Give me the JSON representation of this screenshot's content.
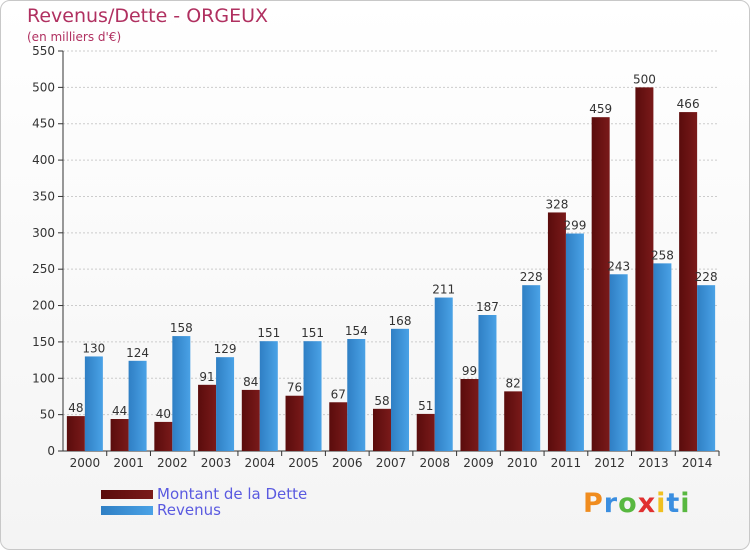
{
  "header": {
    "title": "Revenus/Dette - ORGEUX",
    "subtitle": "(en milliers d'€)"
  },
  "colors": {
    "dette": "#7a1a1a",
    "dette_dark": "#5a0c0c",
    "revenus": "#4aa2e6",
    "revenus_dark": "#2f7fc4",
    "grid": "#cccccc",
    "axis": "#333333"
  },
  "chart_data": {
    "type": "bar",
    "categories": [
      "2000",
      "2001",
      "2002",
      "2003",
      "2004",
      "2005",
      "2006",
      "2007",
      "2008",
      "2009",
      "2010",
      "2011",
      "2012",
      "2013",
      "2014"
    ],
    "series": [
      {
        "name": "Montant de la Dette",
        "values": [
          48,
          44,
          40,
          91,
          84,
          76,
          67,
          58,
          51,
          99,
          82,
          328,
          459,
          500,
          466
        ]
      },
      {
        "name": "Revenus",
        "values": [
          130,
          124,
          158,
          129,
          151,
          151,
          154,
          168,
          211,
          187,
          228,
          299,
          243,
          258,
          228
        ]
      }
    ],
    "yticks": [
      0,
      50,
      100,
      150,
      200,
      250,
      300,
      350,
      400,
      450,
      500,
      550
    ],
    "ylim": [
      0,
      550
    ],
    "grid": true,
    "legend_position": "bottom-left"
  },
  "legend": {
    "items": [
      "Montant de la Dette",
      "Revenus"
    ]
  },
  "logo": {
    "letters": [
      "P",
      "r",
      "o",
      "x",
      "i",
      "t",
      "i"
    ],
    "colors": [
      "#f08c1e",
      "#3a8ee0",
      "#58b840",
      "#e03030",
      "#f0c020",
      "#3a8ee0",
      "#58b840"
    ]
  }
}
